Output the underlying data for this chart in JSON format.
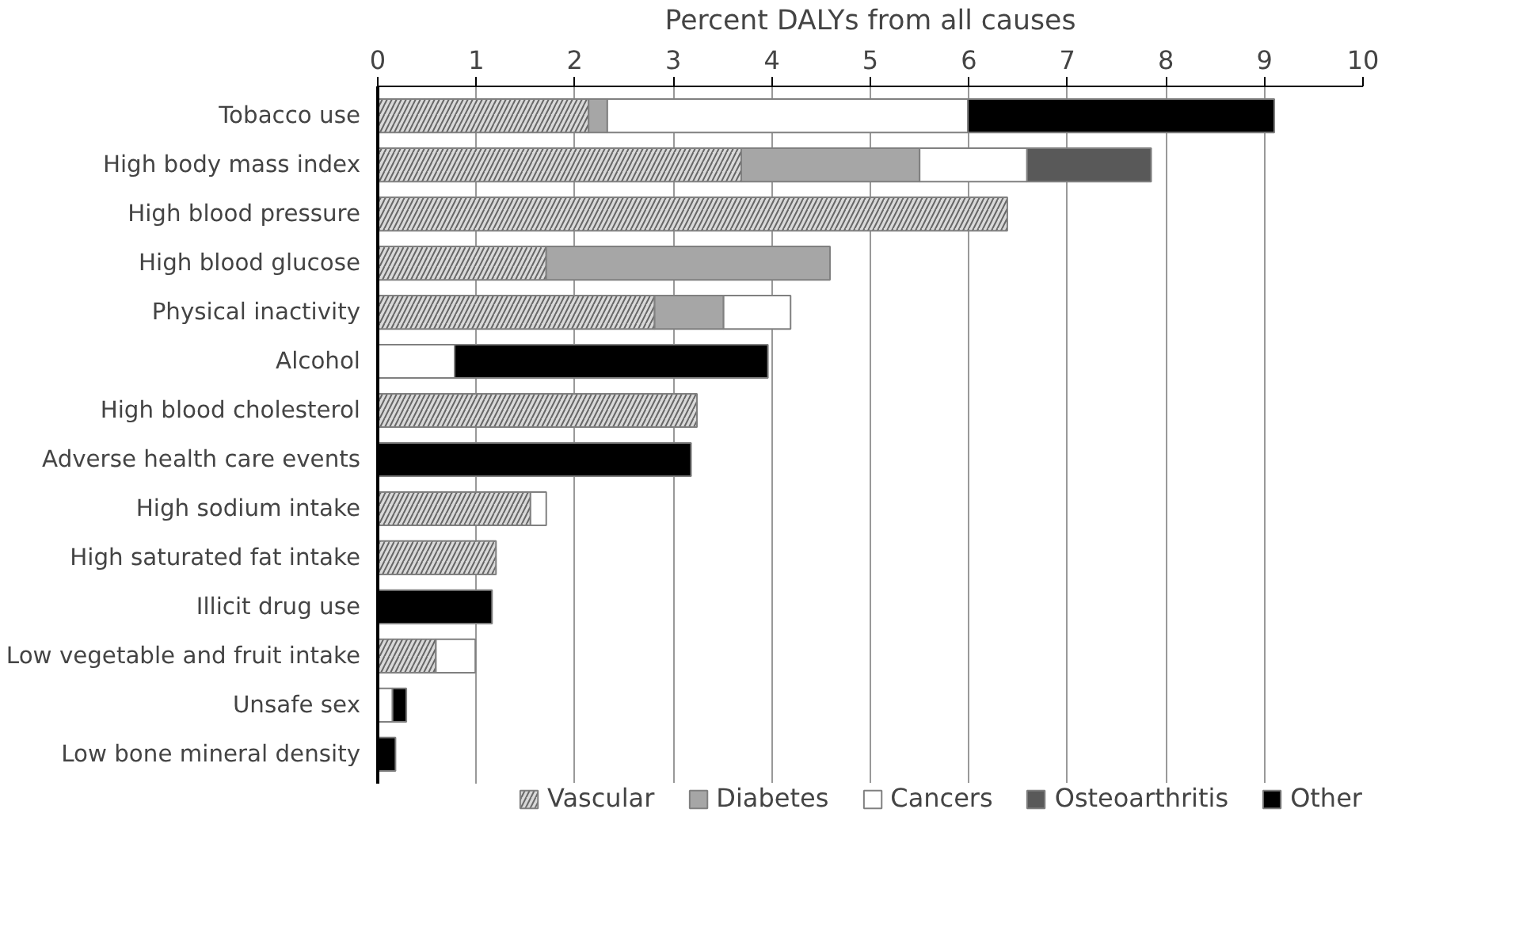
{
  "chart_data": {
    "type": "bar",
    "orientation": "horizontal",
    "stacked": true,
    "xlabel": "Percent DALYs from all causes",
    "categories": [
      "Tobacco use",
      "High body mass index",
      "High blood pressure",
      "High blood glucose",
      "Physical inactivity",
      "Alcohol",
      "High blood cholesterol",
      "Adverse health care events",
      "High sodium intake",
      "High saturated fat intake",
      "Illicit drug use",
      "Low vegetable and fruit intake",
      "Unsafe sex",
      "Low bone mineral density"
    ],
    "series": [
      {
        "name": "Vascular",
        "color": "#d9d9d9",
        "values": [
          2.14,
          3.69,
          6.39,
          1.71,
          2.81,
          0,
          3.24,
          0,
          1.55,
          1.2,
          0,
          0.59,
          0,
          0
        ]
      },
      {
        "name": "Diabetes",
        "color": "#a6a6a6",
        "values": [
          0.19,
          1.81,
          0,
          2.88,
          0.7,
          0,
          0,
          0,
          0,
          0,
          0,
          0,
          0,
          0
        ]
      },
      {
        "name": "Cancers",
        "color": "#ffffff",
        "values": [
          3.66,
          1.09,
          0,
          0,
          0.68,
          0.78,
          0,
          0,
          0.16,
          0,
          0,
          0.4,
          0.15,
          0
        ]
      },
      {
        "name": "Osteoarthritis",
        "color": "#595959",
        "values": [
          0,
          1.26,
          0,
          0,
          0,
          0,
          0,
          0,
          0,
          0,
          0,
          0,
          0,
          0
        ]
      },
      {
        "name": "Other",
        "color": "#000000",
        "values": [
          3.11,
          0,
          0,
          0,
          0,
          3.18,
          0,
          3.18,
          0,
          0,
          1.16,
          0,
          0.14,
          0.18
        ]
      }
    ],
    "xlim": [
      0,
      10
    ],
    "xticks": [
      0,
      1,
      2,
      3,
      4,
      5,
      6,
      7,
      8,
      9,
      10
    ],
    "grid": "x",
    "legend": "bottom"
  }
}
